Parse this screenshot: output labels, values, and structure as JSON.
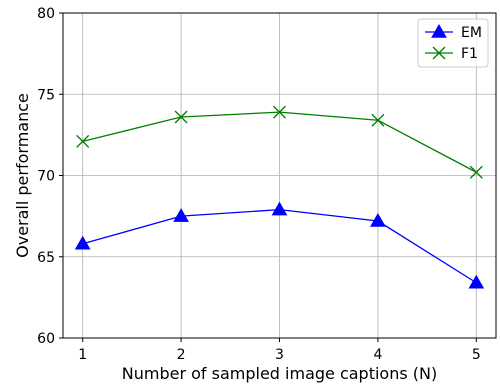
{
  "chart_data": {
    "type": "line",
    "x": [
      1,
      2,
      3,
      4,
      5
    ],
    "series": [
      {
        "name": "EM",
        "values": [
          65.8,
          67.5,
          67.9,
          67.2,
          63.4
        ],
        "color": "#0000ff",
        "marker": "triangle"
      },
      {
        "name": "F1",
        "values": [
          72.1,
          73.6,
          73.9,
          73.4,
          70.2
        ],
        "color": "#008000",
        "marker": "x"
      }
    ],
    "xlabel": "Number of sampled image captions (N)",
    "ylabel": "Overall performance",
    "xlim": [
      0.8,
      5.2
    ],
    "ylim": [
      60,
      80
    ],
    "xticks": [
      "1",
      "2",
      "3",
      "4",
      "5"
    ],
    "yticks": [
      "60",
      "65",
      "70",
      "75",
      "80"
    ],
    "grid": true,
    "legend_position": "top-right"
  }
}
